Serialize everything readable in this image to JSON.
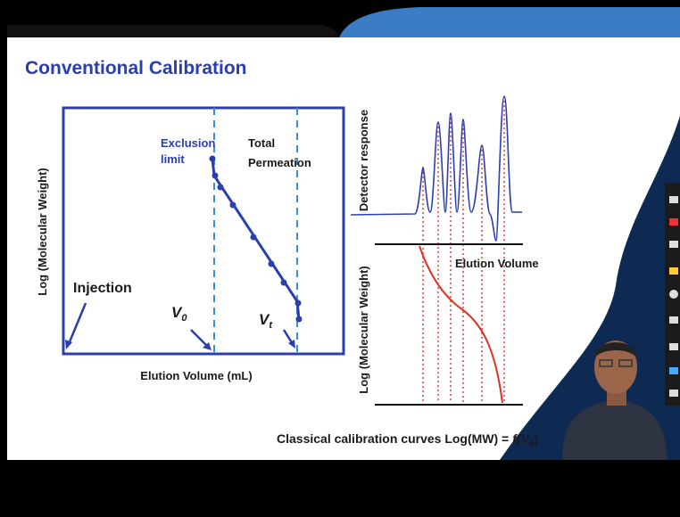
{
  "header": {
    "title": "Conventional Calibration"
  },
  "left_diagram": {
    "y_label": "Log (Molecular Weight)",
    "x_label": "Elution Volume (mL)",
    "exclusion_label": [
      "Exclusion",
      "limit"
    ],
    "permeation_label": [
      "Total",
      "Permeation"
    ],
    "injection_label": "Injection",
    "v0": {
      "main": "V",
      "sub": "0"
    },
    "vt": {
      "main": "V",
      "sub": "t"
    }
  },
  "right_diagram": {
    "top_y_label": "Detector response",
    "x_label": "Elution Volume",
    "bottom_y_label": "Log (Molecular Weight)"
  },
  "caption": {
    "text": "Classical calibration curves Log(MW) = ",
    "func": "f(V",
    "sub": "e",
    "close": ")"
  }
}
